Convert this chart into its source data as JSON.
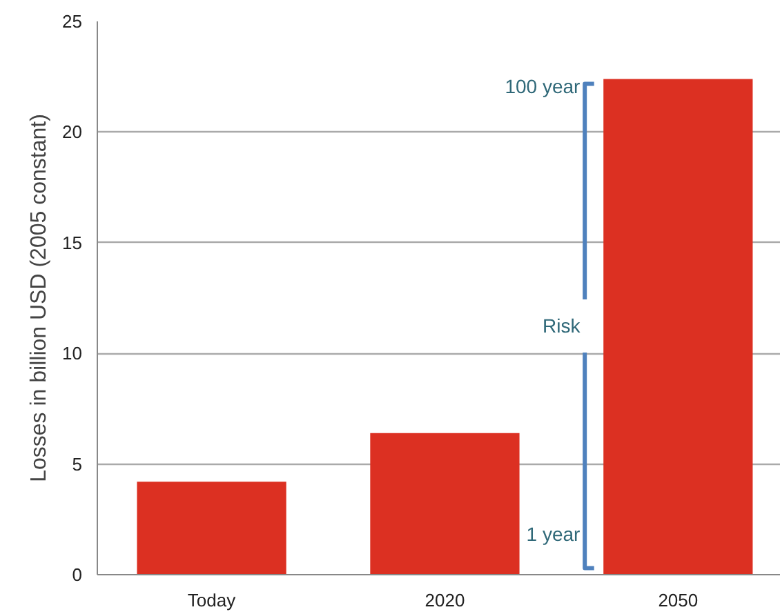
{
  "chart_data": {
    "type": "bar",
    "ylabel": "Losses in billion USD (2005 constant)",
    "categories": [
      "Today",
      "2020",
      "2050"
    ],
    "values": [
      4.2,
      6.4,
      22.4
    ],
    "color": "#dc3022",
    "ylim": [
      0,
      25
    ],
    "yticks": [
      0,
      5,
      10,
      15,
      20,
      25
    ],
    "grid": "y",
    "annotations": [
      "100 year",
      "Risk",
      "1 year"
    ]
  }
}
